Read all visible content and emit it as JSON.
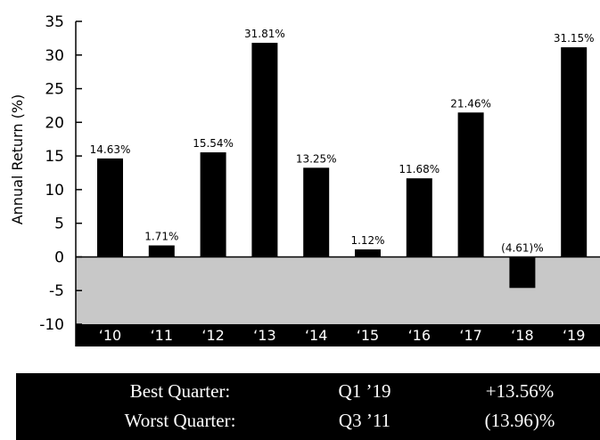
{
  "chart_data": {
    "type": "bar",
    "categories": [
      "‘10",
      "‘11",
      "‘12",
      "‘13",
      "‘14",
      "‘15",
      "‘16",
      "‘17",
      "‘18",
      "‘19"
    ],
    "values": [
      14.63,
      1.71,
      15.54,
      31.81,
      13.25,
      1.12,
      11.68,
      21.46,
      -4.61,
      31.15
    ],
    "data_labels": [
      "14.63%",
      "1.71%",
      "15.54%",
      "31.81%",
      "13.25%",
      "1.12%",
      "11.68%",
      "21.46%",
      "(4.61)%",
      "31.15%"
    ],
    "title": "",
    "xlabel": "",
    "ylabel": "Annual Return (%)",
    "ylim": [
      -10,
      35
    ],
    "yticks": [
      35,
      30,
      25,
      20,
      15,
      10,
      5,
      0,
      -5,
      -10
    ],
    "ytick_labels": [
      "35",
      "30",
      "25",
      "20",
      "15",
      "10",
      "5",
      "0",
      "-5",
      "-10"
    ],
    "grid": false,
    "bar_color": "#000000",
    "negative_region_color": "#c8c8c8",
    "category_band_color": "#000000"
  },
  "stats": {
    "rows": [
      {
        "label": "Best Quarter:",
        "period": "Q1 ’19",
        "value": "+13.56%"
      },
      {
        "label": "Worst Quarter:",
        "period": "Q3 ’11",
        "value": "(13.96)%"
      }
    ]
  }
}
